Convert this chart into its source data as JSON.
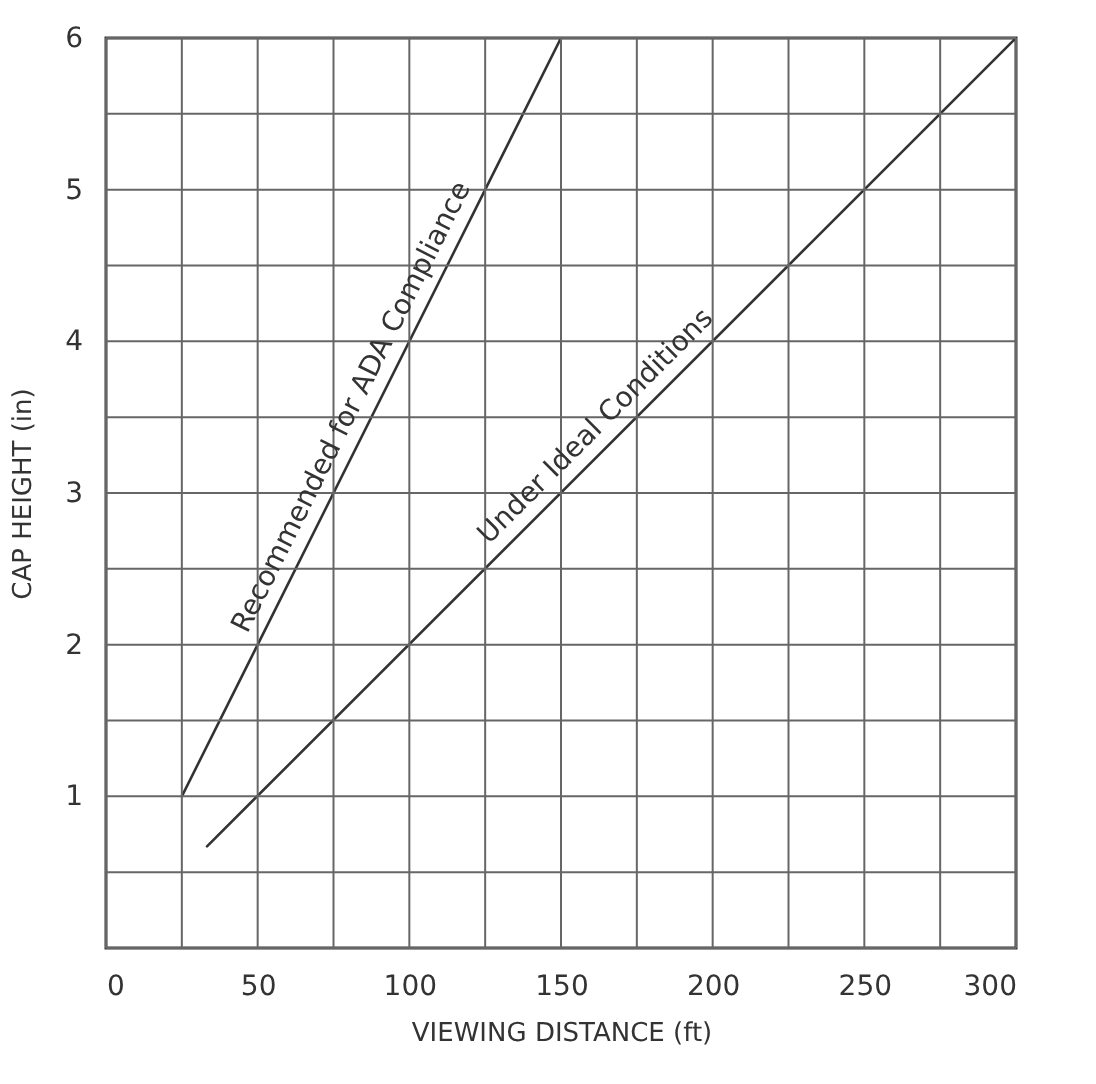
{
  "chart_data": {
    "type": "line",
    "xlabel": "VIEWING DISTANCE (ft)",
    "ylabel": "CAP HEIGHT (in)",
    "series": [
      {
        "name": "Recommended for ADA Compliance",
        "color": "#333333",
        "x": [
          25,
          150
        ],
        "values": [
          1,
          6
        ]
      },
      {
        "name": "Under Ideal Conditions",
        "color": "#333333",
        "x": [
          33.3,
          300
        ],
        "values": [
          0.67,
          6
        ]
      }
    ],
    "xlim": [
      0,
      300
    ],
    "ylim": [
      0,
      6
    ],
    "xticks": [
      0,
      {
        "value": 25,
        "label": null
      },
      50,
      {
        "value": 75,
        "label": null
      },
      100,
      {
        "value": 125,
        "label": null
      },
      150,
      {
        "value": 175,
        "label": null
      },
      200,
      {
        "value": 225,
        "label": null
      },
      250,
      {
        "value": 275,
        "label": null
      },
      300
    ],
    "yticks": [
      {
        "value": 0,
        "label": null
      },
      {
        "value": 0.5,
        "label": null
      },
      1,
      {
        "value": 1.5,
        "label": null
      },
      2,
      {
        "value": 2.5,
        "label": null
      },
      3,
      {
        "value": 3.5,
        "label": null
      },
      4,
      {
        "value": 4.5,
        "label": null
      },
      5,
      {
        "value": 5.5,
        "label": null
      },
      6
    ],
    "grid": true,
    "legend": false,
    "marker": "none",
    "line_style": "solid"
  }
}
